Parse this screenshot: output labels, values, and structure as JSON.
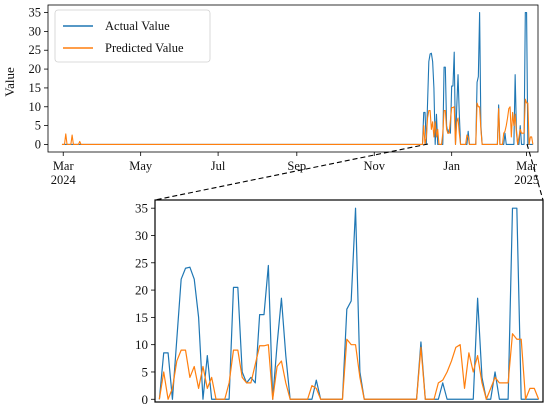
{
  "chart_data": [
    {
      "type": "line",
      "ylabel": "Value",
      "xlim": [
        "2024-02-18",
        "2025-03-10"
      ],
      "ylim": [
        -2,
        37
      ],
      "yticks": [
        0,
        5,
        10,
        15,
        20,
        25,
        30,
        35
      ],
      "xticks": [
        {
          "date": "2024-03-01",
          "label": "Mar",
          "sublabel": "2024"
        },
        {
          "date": "2024-05-01",
          "label": "May",
          "sublabel": ""
        },
        {
          "date": "2024-07-01",
          "label": "Jul",
          "sublabel": ""
        },
        {
          "date": "2024-09-01",
          "label": "Sep",
          "sublabel": ""
        },
        {
          "date": "2024-11-01",
          "label": "Nov",
          "sublabel": ""
        },
        {
          "date": "2025-01-01",
          "label": "Jan",
          "sublabel": ""
        },
        {
          "date": "2025-03-01",
          "label": "Mar",
          "sublabel": "2025"
        }
      ],
      "legend": "top-left",
      "series": [
        {
          "name": "Actual Value",
          "color": "#1f77b4",
          "points": [
            [
              "2024-02-29",
              0
            ],
            [
              "2024-03-05",
              0
            ],
            [
              "2024-03-06",
              0
            ],
            [
              "2024-03-10",
              0
            ],
            [
              "2024-03-15",
              0
            ],
            [
              "2024-03-20",
              0
            ],
            [
              "2024-12-01",
              0
            ],
            [
              "2024-12-09",
              0
            ],
            [
              "2024-12-10",
              8.5
            ],
            [
              "2024-12-11",
              8.5
            ],
            [
              "2024-12-12",
              0
            ],
            [
              "2024-12-14",
              22
            ],
            [
              "2024-12-15",
              24
            ],
            [
              "2024-12-16",
              24.2
            ],
            [
              "2024-12-17",
              22
            ],
            [
              "2024-12-18",
              15
            ],
            [
              "2024-12-19",
              0
            ],
            [
              "2024-12-20",
              8
            ],
            [
              "2024-12-21",
              0
            ],
            [
              "2024-12-25",
              0
            ],
            [
              "2024-12-26",
              20.5
            ],
            [
              "2024-12-27",
              20.5
            ],
            [
              "2024-12-28",
              5
            ],
            [
              "2024-12-29",
              3
            ],
            [
              "2024-12-30",
              4
            ],
            [
              "2024-12-31",
              3
            ],
            [
              "2025-01-01",
              15.5
            ],
            [
              "2025-01-02",
              15.5
            ],
            [
              "2025-01-03",
              24.5
            ],
            [
              "2025-01-04",
              0
            ],
            [
              "2025-01-05",
              10
            ],
            [
              "2025-01-06",
              18.5
            ],
            [
              "2025-01-07",
              8
            ],
            [
              "2025-01-08",
              0
            ],
            [
              "2025-01-13",
              0
            ],
            [
              "2025-01-14",
              3.5
            ],
            [
              "2025-01-15",
              0
            ],
            [
              "2025-01-20",
              0
            ],
            [
              "2025-01-21",
              16.5
            ],
            [
              "2025-01-22",
              18
            ],
            [
              "2025-01-23",
              35
            ],
            [
              "2025-01-24",
              5
            ],
            [
              "2025-01-25",
              0
            ],
            [
              "2025-02-06",
              0
            ],
            [
              "2025-02-07",
              10.5
            ],
            [
              "2025-02-08",
              0
            ],
            [
              "2025-02-11",
              0
            ],
            [
              "2025-02-12",
              3
            ],
            [
              "2025-02-13",
              0
            ],
            [
              "2025-02-19",
              0
            ],
            [
              "2025-02-20",
              18.5
            ],
            [
              "2025-02-21",
              4
            ],
            [
              "2025-02-22",
              0
            ],
            [
              "2025-02-23",
              0
            ],
            [
              "2025-02-24",
              5
            ],
            [
              "2025-02-25",
              0
            ],
            [
              "2025-02-27",
              0
            ],
            [
              "2025-02-28",
              35
            ],
            [
              "2025-03-01",
              35
            ],
            [
              "2025-03-02",
              0
            ],
            [
              "2025-03-06",
              0
            ]
          ]
        },
        {
          "name": "Predicted Value",
          "color": "#ff7f0e",
          "points": [
            [
              "2024-02-29",
              0
            ],
            [
              "2024-03-02",
              0
            ],
            [
              "2024-03-03",
              2.8
            ],
            [
              "2024-03-04",
              0
            ],
            [
              "2024-03-07",
              0
            ],
            [
              "2024-03-08",
              2.5
            ],
            [
              "2024-03-09",
              0
            ],
            [
              "2024-03-13",
              0
            ],
            [
              "2024-03-14",
              0.8
            ],
            [
              "2024-03-15",
              0
            ],
            [
              "2024-03-20",
              0
            ],
            [
              "2024-12-01",
              0
            ],
            [
              "2024-12-09",
              0
            ],
            [
              "2024-12-10",
              5
            ],
            [
              "2024-12-11",
              0
            ],
            [
              "2024-12-12",
              2
            ],
            [
              "2024-12-13",
              7
            ],
            [
              "2024-12-14",
              9
            ],
            [
              "2024-12-15",
              9
            ],
            [
              "2024-12-16",
              4
            ],
            [
              "2024-12-17",
              6
            ],
            [
              "2024-12-18",
              2
            ],
            [
              "2024-12-19",
              6
            ],
            [
              "2024-12-20",
              2
            ],
            [
              "2024-12-21",
              4
            ],
            [
              "2024-12-22",
              0
            ],
            [
              "2024-12-24",
              0
            ],
            [
              "2024-12-25",
              3
            ],
            [
              "2024-12-26",
              9
            ],
            [
              "2024-12-27",
              9
            ],
            [
              "2024-12-28",
              4
            ],
            [
              "2024-12-29",
              3
            ],
            [
              "2024-12-30",
              3
            ],
            [
              "2025-01-01",
              9.8
            ],
            [
              "2025-01-02",
              9.8
            ],
            [
              "2025-01-03",
              10
            ],
            [
              "2025-01-04",
              0
            ],
            [
              "2025-01-05",
              6
            ],
            [
              "2025-01-06",
              7
            ],
            [
              "2025-01-07",
              3
            ],
            [
              "2025-01-08",
              0
            ],
            [
              "2025-01-12",
              0
            ],
            [
              "2025-01-13",
              2.5
            ],
            [
              "2025-01-14",
              2
            ],
            [
              "2025-01-15",
              0
            ],
            [
              "2025-01-20",
              0
            ],
            [
              "2025-01-21",
              11
            ],
            [
              "2025-01-22",
              10
            ],
            [
              "2025-01-23",
              10
            ],
            [
              "2025-01-24",
              4
            ],
            [
              "2025-01-25",
              0
            ],
            [
              "2025-02-06",
              0
            ],
            [
              "2025-02-07",
              9.5
            ],
            [
              "2025-02-08",
              0
            ],
            [
              "2025-02-10",
              0
            ],
            [
              "2025-02-11",
              3
            ],
            [
              "2025-02-12",
              3.5
            ],
            [
              "2025-02-13",
              5
            ],
            [
              "2025-02-14",
              7
            ],
            [
              "2025-02-15",
              9.5
            ],
            [
              "2025-02-16",
              10
            ],
            [
              "2025-02-17",
              2
            ],
            [
              "2025-02-18",
              8.5
            ],
            [
              "2025-02-19",
              5
            ],
            [
              "2025-02-20",
              8
            ],
            [
              "2025-02-21",
              3
            ],
            [
              "2025-02-22",
              0
            ],
            [
              "2025-02-23",
              2
            ],
            [
              "2025-02-24",
              4
            ],
            [
              "2025-02-25",
              3
            ],
            [
              "2025-02-26",
              3
            ],
            [
              "2025-02-27",
              3
            ],
            [
              "2025-02-28",
              12
            ],
            [
              "2025-03-01",
              11
            ],
            [
              "2025-03-02",
              11
            ],
            [
              "2025-03-03",
              0
            ],
            [
              "2025-03-04",
              2
            ],
            [
              "2025-03-05",
              2
            ],
            [
              "2025-03-06",
              0
            ]
          ]
        }
      ]
    },
    {
      "type": "line",
      "xlabel": "",
      "ylabel": "",
      "xlim": [
        "2024-12-08",
        "2025-03-07"
      ],
      "ylim": [
        -0.5,
        36.5
      ],
      "yticks": [
        0,
        5,
        10,
        15,
        20,
        25,
        30,
        35
      ],
      "series_ref": [
        "Actual Value",
        "Predicted Value"
      ]
    }
  ]
}
